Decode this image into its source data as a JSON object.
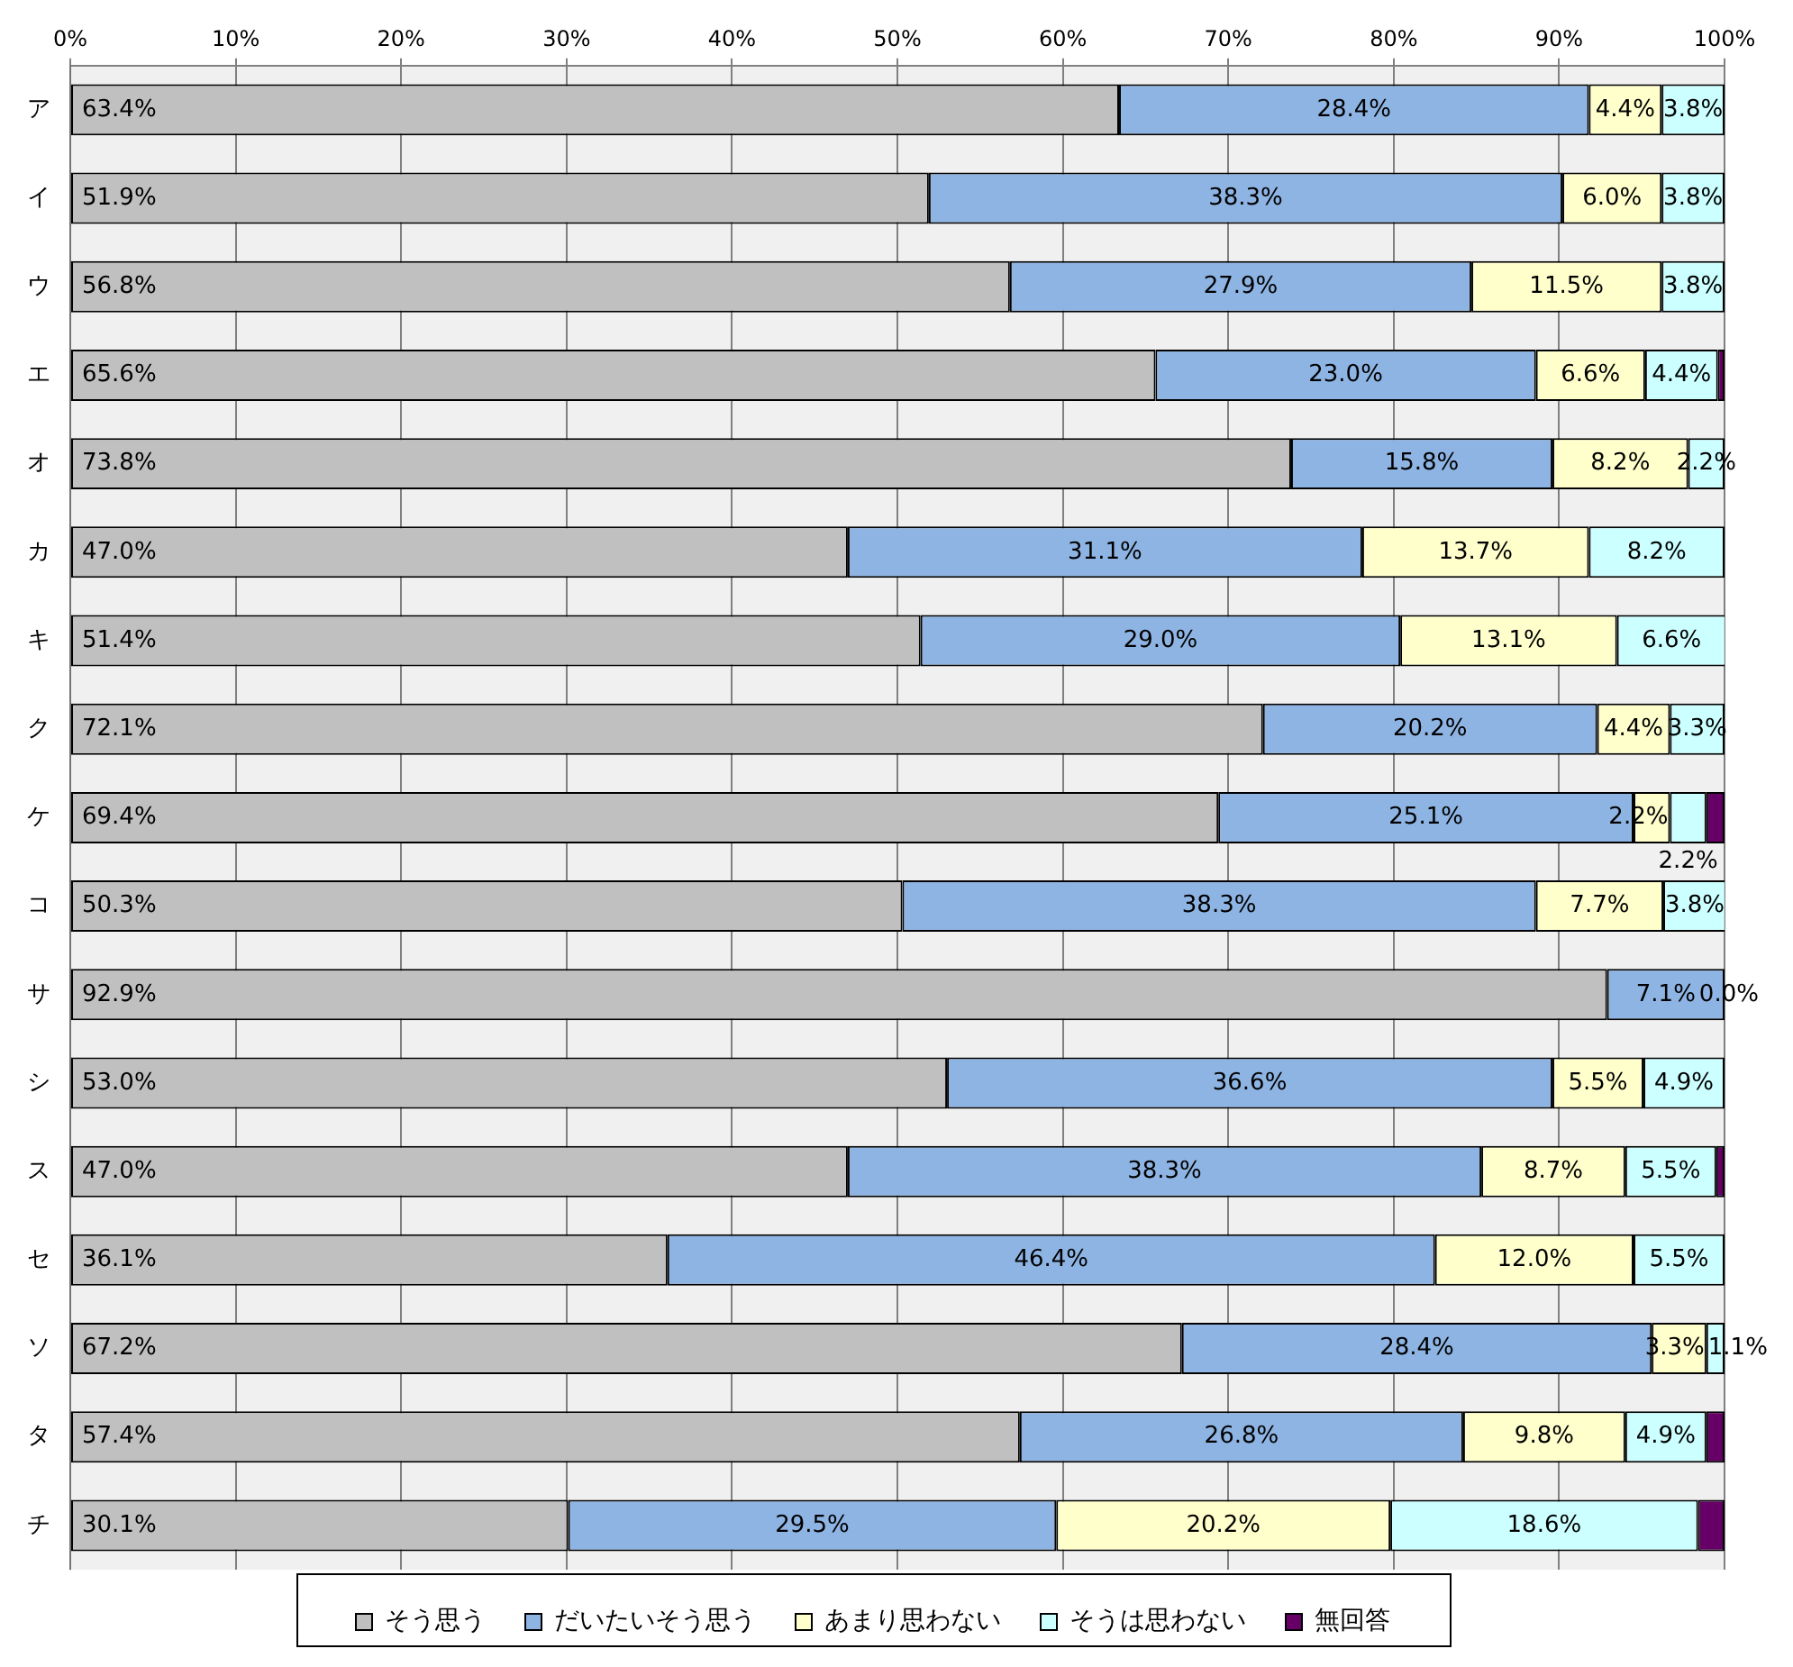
{
  "chart_data": {
    "type": "bar",
    "orientation": "horizontal",
    "stacked": true,
    "grid": "x",
    "legend": "bottom",
    "categories": [
      "ア",
      "イ",
      "ウ",
      "エ",
      "オ",
      "カ",
      "キ",
      "ク",
      "ケ",
      "コ",
      "サ",
      "シ",
      "ス",
      "セ",
      "ソ",
      "タ",
      "チ"
    ],
    "xlim": [
      0,
      100
    ],
    "xticks": [
      {
        "value": 0,
        "label": "0%"
      },
      {
        "value": 10,
        "label": "10%"
      },
      {
        "value": 20,
        "label": "20%"
      },
      {
        "value": 30,
        "label": "30%"
      },
      {
        "value": 40,
        "label": "40%"
      },
      {
        "value": 50,
        "label": "50%"
      },
      {
        "value": 60,
        "label": "60%"
      },
      {
        "value": 70,
        "label": "70%"
      },
      {
        "value": 80,
        "label": "80%"
      },
      {
        "value": 90,
        "label": "90%"
      },
      {
        "value": 100,
        "label": "100%"
      }
    ],
    "series": [
      {
        "name": "そう思う",
        "color": "#c0c0c0",
        "values": [
          63.4,
          51.9,
          56.8,
          65.6,
          73.8,
          47.0,
          51.4,
          72.1,
          69.4,
          50.3,
          92.9,
          53.0,
          47.0,
          36.1,
          67.2,
          57.4,
          30.1
        ],
        "value_labels": [
          "63.4%",
          "51.9%",
          "56.8%",
          "65.6%",
          "73.8%",
          "47.0%",
          "51.4%",
          "72.1%",
          "69.4%",
          "50.3%",
          "92.9%",
          "53.0%",
          "47.0%",
          "36.1%",
          "67.2%",
          "57.4%",
          "30.1%"
        ]
      },
      {
        "name": "だいたいそう思う",
        "color": "#8eb4e3",
        "values": [
          28.4,
          38.3,
          27.9,
          23.0,
          15.8,
          31.1,
          29.0,
          20.2,
          25.1,
          38.3,
          7.1,
          36.6,
          38.3,
          46.4,
          28.4,
          26.8,
          29.5
        ],
        "value_labels": [
          "28.4%",
          "38.3%",
          "27.9%",
          "23.0%",
          "15.8%",
          "31.1%",
          "29.0%",
          "20.2%",
          "25.1%",
          "38.3%",
          "7.1%",
          "36.6%",
          "38.3%",
          "46.4%",
          "28.4%",
          "26.8%",
          "29.5%"
        ]
      },
      {
        "name": "あまり思わない",
        "color": "#ffffcc",
        "values": [
          4.4,
          6.0,
          11.5,
          6.6,
          8.2,
          13.7,
          13.1,
          4.4,
          2.2,
          7.7,
          0,
          5.5,
          8.7,
          12.0,
          3.3,
          9.8,
          20.2
        ],
        "value_labels": [
          "4.4%",
          "6.0%",
          "11.5%",
          "6.6%",
          "8.2%",
          "13.7%",
          "13.1%",
          "4.4%",
          "2.2%",
          "7.7%",
          null,
          "5.5%",
          "8.7%",
          "12.0%",
          "3.3%",
          "9.8%",
          "20.2%"
        ]
      },
      {
        "name": "そうは思わない",
        "color": "#ccffff",
        "values": [
          3.8,
          3.8,
          3.8,
          4.4,
          2.2,
          8.2,
          6.6,
          3.3,
          2.2,
          3.8,
          0,
          4.9,
          5.5,
          5.5,
          1.1,
          4.9,
          18.6
        ],
        "value_labels": [
          "3.8%",
          "3.8%",
          "3.8%",
          "4.4%",
          "2.2%",
          "8.2%",
          "6.6%",
          "3.3%",
          "2.2%",
          "3.8%",
          "0.0%",
          "4.9%",
          "5.5%",
          "5.5%",
          "1.1%",
          "4.9%",
          "18.6%"
        ]
      },
      {
        "name": "無回答",
        "color": "#660066",
        "values": [
          0,
          0,
          0,
          0.4,
          0,
          0,
          0,
          0,
          1.1,
          0,
          0,
          0,
          0.5,
          0,
          0,
          1.1,
          1.6
        ]
      }
    ]
  }
}
